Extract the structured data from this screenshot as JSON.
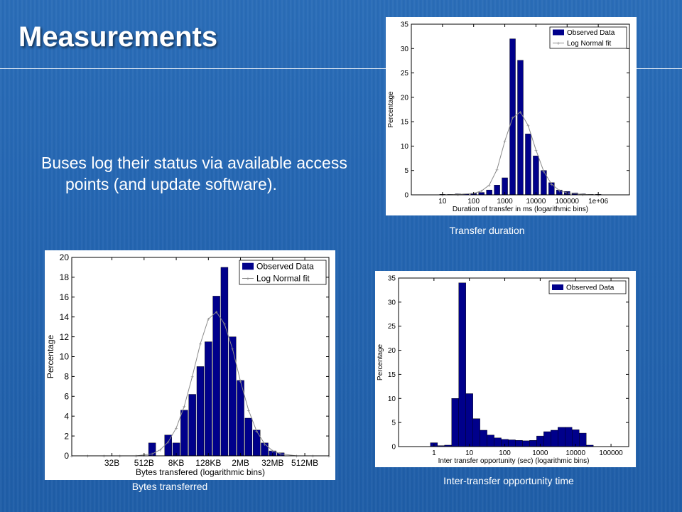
{
  "slide": {
    "title": "Measurements",
    "bullet": "Buses log their status via available access points (and update software)."
  },
  "colors": {
    "bar": "#00008b",
    "fit": "#8a8a8a",
    "axis": "#000000"
  },
  "captions": {
    "duration": "Transfer duration",
    "bytes": "Bytes transferred",
    "inter": "Inter-transfer opportunity time"
  },
  "chart_data": [
    {
      "id": "duration",
      "type": "bar",
      "xlabel": "Duration of transfer in ms (logarithmic bins)",
      "ylabel": "Percentage",
      "ylim": [
        0,
        35
      ],
      "yticks": [
        0,
        5,
        10,
        15,
        20,
        25,
        30,
        35
      ],
      "xticks": [
        {
          "label": "10",
          "pos": 1
        },
        {
          "label": "100",
          "pos": 2
        },
        {
          "label": "1000",
          "pos": 3
        },
        {
          "label": "10000",
          "pos": 4
        },
        {
          "label": "100000",
          "pos": 5
        },
        {
          "label": "1e+06",
          "pos": 6
        }
      ],
      "xlim": [
        0,
        7
      ],
      "legend": [
        "Observed Data",
        "Log Normal fit"
      ],
      "legend_position": "top-right",
      "bars": {
        "x": [
          1.0,
          1.25,
          1.5,
          1.75,
          2.0,
          2.25,
          2.5,
          2.75,
          3.0,
          3.25,
          3.5,
          3.75,
          4.0,
          4.25,
          4.5,
          4.75,
          5.0,
          5.25,
          5.5,
          5.75,
          6.0
        ],
        "y": [
          0.1,
          0.1,
          0.2,
          0.2,
          0.3,
          0.5,
          1.0,
          2.0,
          3.5,
          32.0,
          27.6,
          12.5,
          8.0,
          5.0,
          2.5,
          1.0,
          0.7,
          0.4,
          0.2,
          0.1,
          0.1
        ]
      },
      "fit": {
        "x": [
          1.0,
          1.5,
          2.0,
          2.25,
          2.5,
          2.75,
          3.0,
          3.25,
          3.5,
          3.75,
          4.0,
          4.25,
          4.5,
          4.75,
          5.0,
          5.5,
          6.0
        ],
        "y": [
          0.0,
          0.1,
          0.3,
          0.8,
          2.0,
          5.2,
          11.0,
          15.8,
          17.0,
          14.2,
          9.2,
          4.8,
          2.2,
          0.9,
          0.4,
          0.1,
          0.0
        ]
      }
    },
    {
      "id": "bytes",
      "type": "bar",
      "xlabel": "Bytes transfered (logarithmic bins)",
      "ylabel": "Percentage",
      "ylim": [
        0,
        20
      ],
      "yticks": [
        0,
        2,
        4,
        6,
        8,
        10,
        12,
        14,
        16,
        18,
        20
      ],
      "xticks": [
        {
          "label": "32B",
          "pos": 5
        },
        {
          "label": "512B",
          "pos": 9
        },
        {
          "label": "8KB",
          "pos": 13
        },
        {
          "label": "128KB",
          "pos": 17
        },
        {
          "label": "2MB",
          "pos": 21
        },
        {
          "label": "32MB",
          "pos": 25
        },
        {
          "label": "512MB",
          "pos": 29
        }
      ],
      "xlim": [
        0,
        32
      ],
      "legend": [
        "Observed Data",
        "Log Normal fit"
      ],
      "legend_position": "top-right",
      "bars": {
        "x": [
          10,
          12,
          13,
          14,
          15,
          16,
          17,
          18,
          19,
          20,
          21,
          22,
          23,
          24,
          25,
          26
        ],
        "y": [
          1.3,
          2.1,
          1.3,
          4.6,
          6.2,
          9.0,
          11.5,
          16.1,
          19.0,
          12.0,
          7.6,
          3.8,
          2.6,
          1.3,
          0.5,
          0.3
        ]
      },
      "fit": {
        "x": [
          0,
          2,
          4,
          6,
          8,
          9,
          10,
          11,
          12,
          13,
          14,
          15,
          16,
          17,
          18,
          19,
          20,
          21,
          22,
          23,
          24,
          25,
          26,
          28,
          30,
          32
        ],
        "y": [
          0,
          0,
          0,
          0,
          0,
          0.1,
          0.2,
          0.6,
          1.4,
          2.8,
          5.0,
          8.0,
          11.3,
          13.8,
          14.5,
          13.3,
          10.8,
          7.5,
          4.6,
          2.5,
          1.2,
          0.5,
          0.2,
          0,
          0,
          0
        ]
      }
    },
    {
      "id": "inter",
      "type": "bar",
      "xlabel": "Inter transfer opportunity (sec) (logarithmic bins)",
      "ylabel": "Percentage",
      "ylim": [
        0,
        35
      ],
      "yticks": [
        0,
        5,
        10,
        15,
        20,
        25,
        30,
        35
      ],
      "xticks": [
        {
          "label": "1",
          "pos": 1
        },
        {
          "label": "10",
          "pos": 2
        },
        {
          "label": "100",
          "pos": 3
        },
        {
          "label": "1000",
          "pos": 4
        },
        {
          "label": "10000",
          "pos": 5
        },
        {
          "label": "100000",
          "pos": 6
        }
      ],
      "xlim": [
        0,
        6.5
      ],
      "legend": [
        "Observed Data"
      ],
      "legend_position": "top-right",
      "bars": {
        "x": [
          1.0,
          1.2,
          1.4,
          1.6,
          1.8,
          2.0,
          2.2,
          2.4,
          2.6,
          2.8,
          3.0,
          3.2,
          3.4,
          3.6,
          3.8,
          4.0,
          4.2,
          4.4,
          4.6,
          4.8,
          5.0,
          5.2,
          5.4
        ],
        "y": [
          0.8,
          0.2,
          0.3,
          10.0,
          34.0,
          11.0,
          5.8,
          3.4,
          2.4,
          1.8,
          1.5,
          1.4,
          1.3,
          1.2,
          1.3,
          2.2,
          3.1,
          3.4,
          4.0,
          4.0,
          3.5,
          2.8,
          0.3
        ]
      }
    }
  ]
}
